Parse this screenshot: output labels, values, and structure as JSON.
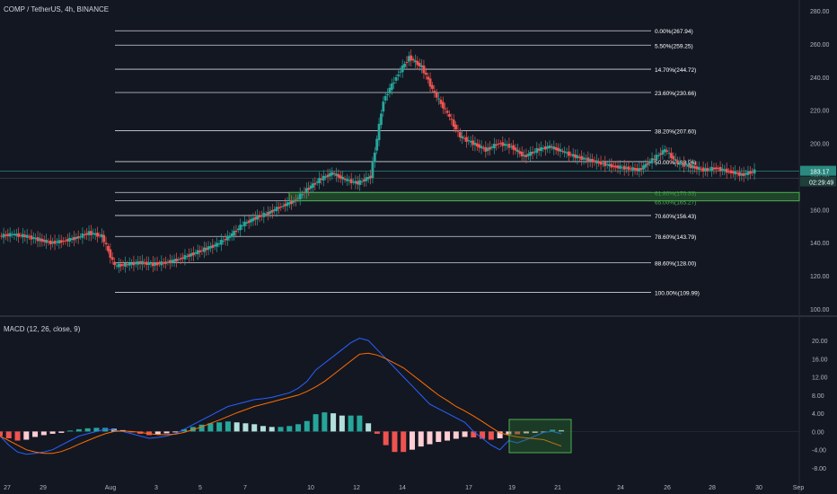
{
  "header": {
    "symbol": "COMP / TetherUS, 4h, BINANCE"
  },
  "macd_header": {
    "label": "MACD (12, 26, close, 9)"
  },
  "colors": {
    "background": "#131722",
    "up": "#26a69a",
    "down": "#ef5350",
    "fib_line": "#d1d4dc",
    "channel": "#f0e130",
    "zone_fill": "#2e7d32",
    "zone_border": "#4caf50",
    "macd_line": "#2962ff",
    "signal_line": "#ff6d00",
    "price_tag": "#2a8a80"
  },
  "chart_data": [
    {
      "type": "candlestick",
      "title": "COMP / TetherUS, 4h, BINANCE",
      "y_ticks": [
        "280.00",
        "260.00",
        "240.00",
        "220.00",
        "200.00",
        "180.00",
        "160.00",
        "140.00",
        "120.00",
        "100.00"
      ],
      "ylim": [
        100,
        280
      ],
      "x_ticks": [
        "27",
        "29",
        "Aug",
        "3",
        "5",
        "7",
        "10",
        "12",
        "14",
        "17",
        "19",
        "21",
        "24",
        "26",
        "28",
        "30",
        "Sep"
      ],
      "last_price": "183.17",
      "countdown": "02:29:49",
      "fib_levels": [
        {
          "label": "0.00%(267.94)",
          "value": 267.94
        },
        {
          "label": "5.50%(259.25)",
          "value": 259.25
        },
        {
          "label": "14.70%(244.72)",
          "value": 244.72
        },
        {
          "label": "23.60%(230.66)",
          "value": 230.66
        },
        {
          "label": "38.20%(207.60)",
          "value": 207.6
        },
        {
          "label": "50.00%(188.96)",
          "value": 188.96
        },
        {
          "label": "61.80%(170.33)",
          "value": 170.33
        },
        {
          "label": "65.00%(165.27)",
          "value": 165.27
        },
        {
          "label": "70.60%(156.43)",
          "value": 156.43
        },
        {
          "label": "78.60%(143.79)",
          "value": 143.79
        },
        {
          "label": "88.60%(128.00)",
          "value": 128.0
        },
        {
          "label": "100.00%(109.99)",
          "value": 109.99
        }
      ],
      "support_zone": [
        165.27,
        170.33
      ],
      "channel_upper": [
        [
          14,
          210
        ],
        [
          21.3,
          188
        ]
      ],
      "channel_lower": [
        [
          14,
          186
        ],
        [
          21.3,
          172
        ]
      ],
      "close_path": [
        [
          26.5,
          148
        ],
        [
          27,
          146
        ],
        [
          27.5,
          145
        ],
        [
          28,
          144
        ],
        [
          28.5,
          145
        ],
        [
          29,
          144
        ],
        [
          29.5,
          142
        ],
        [
          30,
          140
        ],
        [
          30.5,
          141
        ],
        [
          31,
          143
        ],
        [
          31.5,
          146
        ],
        [
          32,
          144
        ],
        [
          32.5,
          126
        ],
        [
          33,
          127
        ],
        [
          33.5,
          128
        ],
        [
          34,
          127
        ],
        [
          34.5,
          128
        ],
        [
          35,
          130
        ],
        [
          35.5,
          133
        ],
        [
          36,
          136
        ],
        [
          36.5,
          139
        ],
        [
          37,
          144
        ],
        [
          37.5,
          151
        ],
        [
          38,
          155
        ],
        [
          38.5,
          158
        ],
        [
          39,
          162
        ],
        [
          39.5,
          165
        ],
        [
          40,
          172
        ],
        [
          40.5,
          178
        ],
        [
          41,
          182
        ],
        [
          41.5,
          178
        ],
        [
          42,
          176
        ],
        [
          42.5,
          180
        ],
        [
          43,
          226
        ],
        [
          43.5,
          240
        ],
        [
          44,
          252
        ],
        [
          44.5,
          246
        ],
        [
          45,
          230
        ],
        [
          45.5,
          218
        ],
        [
          46,
          204
        ],
        [
          46.5,
          200
        ],
        [
          47,
          196
        ],
        [
          47.5,
          200
        ],
        [
          48,
          198
        ],
        [
          48.5,
          192
        ],
        [
          49,
          196
        ],
        [
          49.5,
          198
        ],
        [
          50,
          195
        ],
        [
          50.5,
          192
        ],
        [
          51,
          190
        ],
        [
          51.5,
          188
        ],
        [
          52,
          186
        ],
        [
          52.5,
          185
        ],
        [
          53,
          184
        ],
        [
          53.5,
          190
        ],
        [
          54,
          196
        ],
        [
          54.5,
          188
        ],
        [
          55,
          186
        ],
        [
          55.5,
          184
        ],
        [
          56,
          185
        ],
        [
          56.5,
          183
        ],
        [
          57,
          181
        ],
        [
          57.5,
          183.17
        ]
      ]
    },
    {
      "type": "macd",
      "title": "MACD (12, 26, close, 9)",
      "y_ticks": [
        "20.00",
        "16.00",
        "12.00",
        "8.00",
        "4.00",
        "0.00",
        "-4.00",
        "-8.00"
      ],
      "ylim": [
        -9,
        21
      ],
      "macd": [
        -1,
        -3,
        -4.5,
        -5,
        -4.8,
        -4.5,
        -4,
        -3,
        -2,
        -1,
        -0.5,
        0,
        0.5,
        0.3,
        0,
        -0.5,
        -1,
        -1.5,
        -1.3,
        -1,
        -0.5,
        0.5,
        1.5,
        2.5,
        3.5,
        4.5,
        5.5,
        6,
        6.5,
        7,
        7.2,
        7.5,
        8,
        8.5,
        9.5,
        11,
        13.5,
        15,
        16.5,
        18,
        19.5,
        20.5,
        20,
        18,
        16,
        14,
        12,
        10,
        8,
        6,
        5,
        4,
        3,
        2,
        0,
        -1.5,
        -3,
        -4,
        -2,
        -2.5,
        -1.8,
        -1,
        -0.2,
        0,
        -0.5
      ],
      "signal": [
        -1,
        -2,
        -3,
        -4,
        -4.5,
        -4.8,
        -4.8,
        -4.4,
        -3.7,
        -2.8,
        -2,
        -1.2,
        -0.5,
        0,
        0.1,
        0,
        -0.2,
        -0.5,
        -0.7,
        -0.7,
        -0.6,
        -0.2,
        0.4,
        1,
        1.8,
        2.5,
        3.3,
        4.1,
        4.8,
        5.5,
        6,
        6.5,
        7,
        7.5,
        8,
        8.8,
        9.8,
        11,
        12.5,
        14,
        15.5,
        17,
        17.2,
        16.8,
        16,
        15,
        14,
        12.5,
        11,
        9.5,
        8,
        6.8,
        5.5,
        4.5,
        3.4,
        2.2,
        0.9,
        -0.3,
        -0.8,
        -1.2,
        -1.4,
        -1.6,
        -1.8,
        -2.5,
        -3.2
      ],
      "histogram": [
        -1,
        -1.5,
        -2,
        -1.8,
        -1.2,
        -0.8,
        -0.5,
        -0.3,
        0.2,
        0.5,
        0.7,
        0.8,
        0.8,
        0.6,
        0.3,
        -0.2,
        -0.5,
        -0.8,
        -0.6,
        -0.4,
        -0.1,
        0.5,
        1,
        1.5,
        1.8,
        2,
        2.2,
        2,
        1.8,
        1.6,
        1.2,
        1,
        1,
        1.2,
        1.6,
        2.3,
        3.8,
        4.2,
        4,
        3.5,
        3.5,
        3.5,
        1.8,
        -0.5,
        -3,
        -4.5,
        -4.5,
        -4,
        -3.3,
        -2.8,
        -2.3,
        -2,
        -1.6,
        -1.2,
        -1.3,
        -1.6,
        -1.8,
        -1.5,
        -0.6,
        -0.6,
        -0.4,
        -0.3,
        -0.2,
        0.4,
        0.3
      ],
      "x_ticks": [
        "27",
        "29",
        "Aug",
        "3",
        "5",
        "7",
        "10",
        "12",
        "14",
        "17",
        "19",
        "21",
        "24",
        "26",
        "28",
        "30",
        "Sep"
      ]
    }
  ]
}
